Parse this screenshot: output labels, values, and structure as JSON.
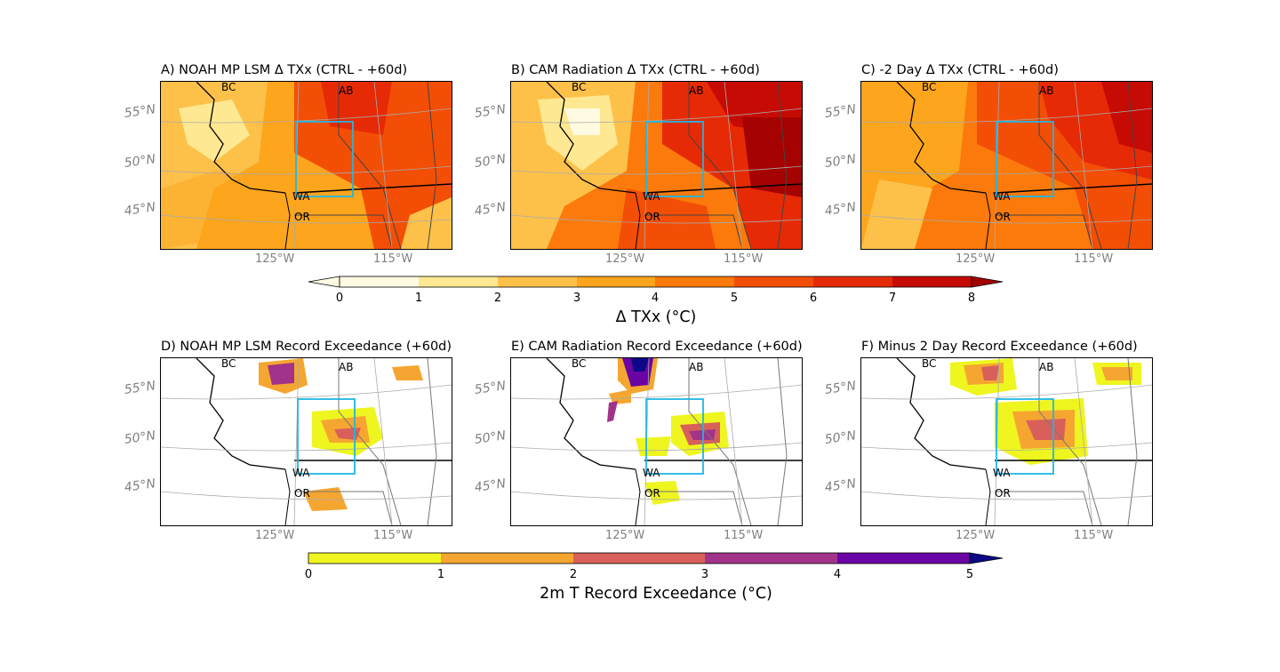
{
  "top_row": {
    "panels": [
      {
        "title": "A) NOAH MP LSM Δ TXx (CTRL - +60d)"
      },
      {
        "title": "B) CAM Radiation Δ TXx (CTRL - +60d)"
      },
      {
        "title": "C) -2 Day Δ TXx (CTRL - +60d)"
      }
    ]
  },
  "bottom_row": {
    "panels": [
      {
        "title": "D) NOAH MP LSM Record Exceedance (+60d)"
      },
      {
        "title": "E) CAM Radiation Record Exceedance (+60d)"
      },
      {
        "title": "F) Minus 2 Day Record Exceedance (+60d)"
      }
    ]
  },
  "map_labels": {
    "lat": [
      "55°N",
      "50°N",
      "45°N"
    ],
    "lon": [
      "125°W",
      "115°W"
    ],
    "regions": {
      "bc": "BC",
      "ab": "AB",
      "wa": "WA",
      "or": "OR"
    }
  },
  "colorbar_top": {
    "label": "Δ TXx (°C)",
    "ticks": [
      "0",
      "1",
      "2",
      "3",
      "4",
      "5",
      "6",
      "7",
      "8"
    ],
    "colors": [
      "#fffbe3",
      "#fee891",
      "#fdc14a",
      "#fca51d",
      "#fb7a0b",
      "#f34e06",
      "#e62a06",
      "#c60b05",
      "#a50202"
    ]
  },
  "colorbar_bottom": {
    "label": "2m T Record Exceedance (°C)",
    "ticks": [
      "0",
      "1",
      "2",
      "3",
      "4",
      "5"
    ],
    "colors": [
      "#eef51f",
      "#f5a630",
      "#d9605a",
      "#a2338a",
      "#6a04a4",
      "#0d0887"
    ]
  }
}
